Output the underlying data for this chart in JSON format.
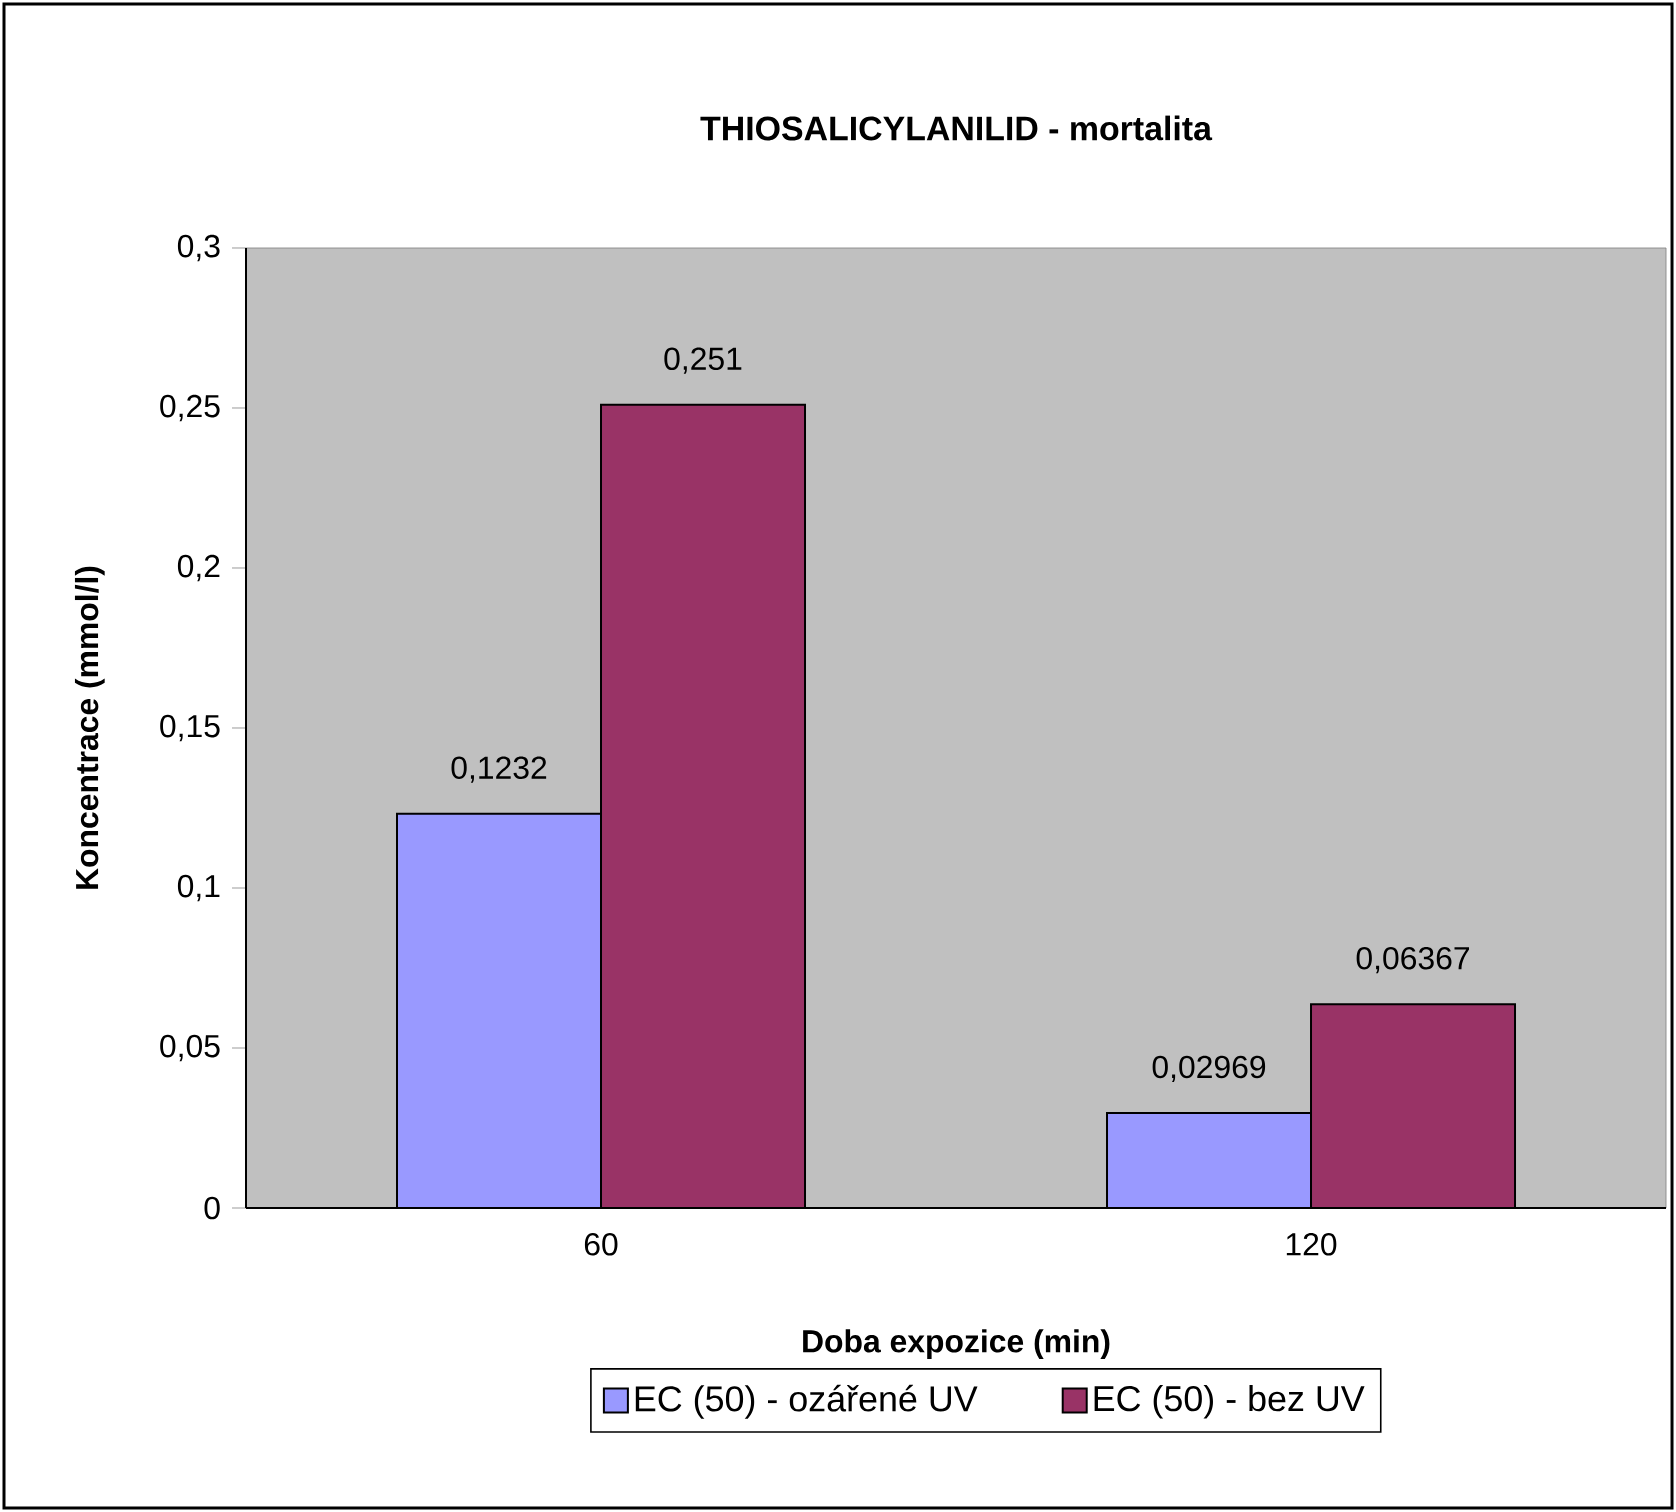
{
  "chart_data": {
    "type": "bar",
    "title": "THIOSALICYLANILID - mortalita",
    "xlabel": "Doba expozice (min)",
    "ylabel": "Koncentrace (mmol/l)",
    "categories": [
      "60",
      "120"
    ],
    "series": [
      {
        "name": "EC (50) - ozářené UV",
        "color": "#9999ff",
        "values": [
          0.1232,
          0.02969
        ],
        "value_labels": [
          "0,1232",
          "0,02969"
        ]
      },
      {
        "name": "EC (50) - bez UV",
        "color": "#993366",
        "values": [
          0.251,
          0.06367
        ],
        "value_labels": [
          "0,251",
          "0,06367"
        ]
      }
    ],
    "ylim": [
      0,
      0.3
    ],
    "yticks": [
      {
        "value": 0,
        "label": "0"
      },
      {
        "value": 0.05,
        "label": "0,05"
      },
      {
        "value": 0.1,
        "label": "0,1"
      },
      {
        "value": 0.15,
        "label": "0,15"
      },
      {
        "value": 0.2,
        "label": "0,2"
      },
      {
        "value": 0.25,
        "label": "0,25"
      },
      {
        "value": 0.3,
        "label": "0,3"
      }
    ],
    "legend": "bottom"
  }
}
